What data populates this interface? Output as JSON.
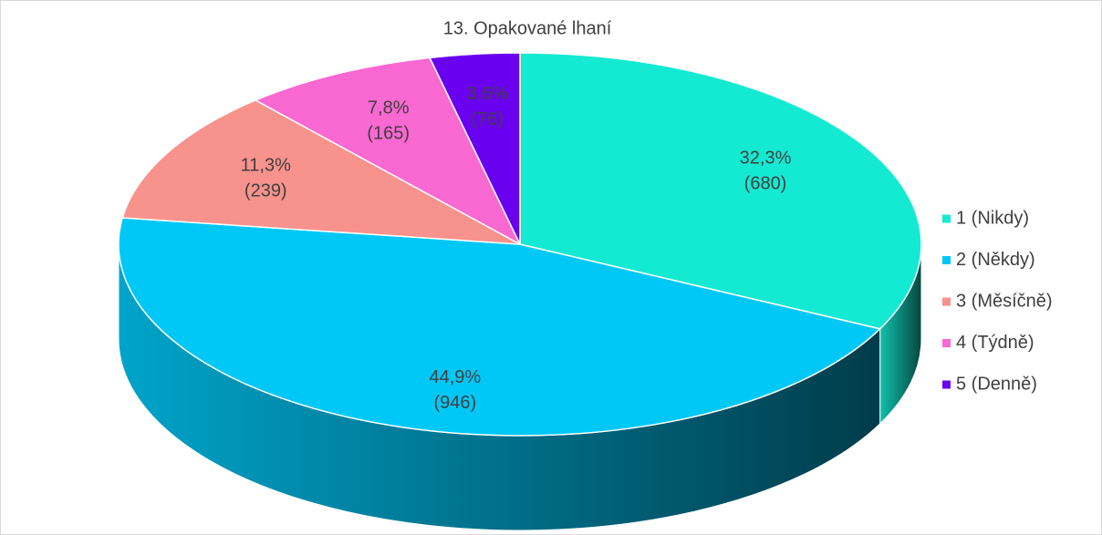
{
  "chart_data": {
    "type": "pie3d",
    "title": "13. Opakované lhaní",
    "categories": [
      "1 (Nikdy)",
      "2 (Někdy)",
      "3 (Měsíčně)",
      "4 (Týdně)",
      "5 (Denně)"
    ],
    "values": [
      680,
      946,
      239,
      165,
      76
    ],
    "value_labels": [
      [
        "32,3%",
        "(680)"
      ],
      [
        "44,9%",
        "(946)"
      ],
      [
        "11,3%",
        "(239)"
      ],
      [
        "7,8%",
        "(165)"
      ],
      [
        "3,6%",
        "(76)"
      ]
    ],
    "colors": [
      "#14ead2",
      "#00c8f6",
      "#f8928c",
      "#fa68d2",
      "#6a00f0"
    ],
    "legend": "right"
  }
}
